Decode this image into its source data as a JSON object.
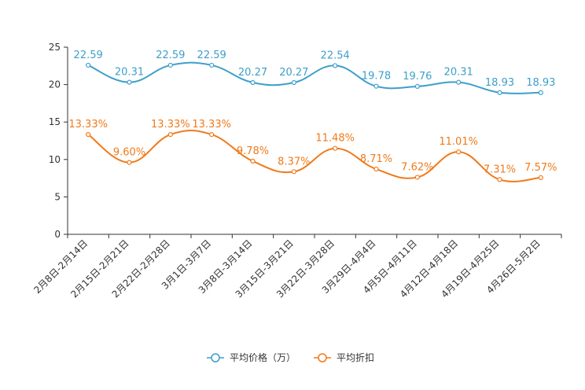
{
  "chart_data": {
    "type": "line",
    "title": "",
    "xlabel": "",
    "ylabel": "",
    "ylim": [
      0,
      25
    ],
    "yticks": [
      0,
      5,
      10,
      15,
      20,
      25
    ],
    "grid": false,
    "legend_position": "bottom",
    "categories": [
      "2月8日-2月14日",
      "2月15日-2月21日",
      "2月22日-2月28日",
      "3月1日-3月7日",
      "3月8日-3月14日",
      "3月15日-3月21日",
      "3月22日-3月28日",
      "3月29日-4月4日",
      "4月5日-4月11日",
      "4月12日-4月18日",
      "4月19日-4月25日",
      "4月26日-5月2日"
    ],
    "series": [
      {
        "name": "平均价格（万）",
        "color": "#3d9fca",
        "values": [
          22.59,
          20.31,
          22.59,
          22.59,
          20.27,
          20.27,
          22.54,
          19.78,
          19.76,
          20.31,
          18.93,
          18.93
        ],
        "labels": [
          "22.59",
          "20.31",
          "22.59",
          "22.59",
          "20.27",
          "20.27",
          "22.54",
          "19.78",
          "19.76",
          "20.31",
          "18.93",
          "18.93"
        ]
      },
      {
        "name": "平均折扣",
        "color": "#f07a1a",
        "values": [
          13.33,
          9.6,
          13.33,
          13.33,
          9.78,
          8.37,
          11.48,
          8.71,
          7.62,
          11.01,
          7.31,
          7.57
        ],
        "labels": [
          "13.33%",
          "9.60%",
          "13.33%",
          "13.33%",
          "9.78%",
          "8.37%",
          "11.48%",
          "8.71%",
          "7.62%",
          "11.01%",
          "7.31%",
          "7.57%"
        ]
      }
    ]
  }
}
